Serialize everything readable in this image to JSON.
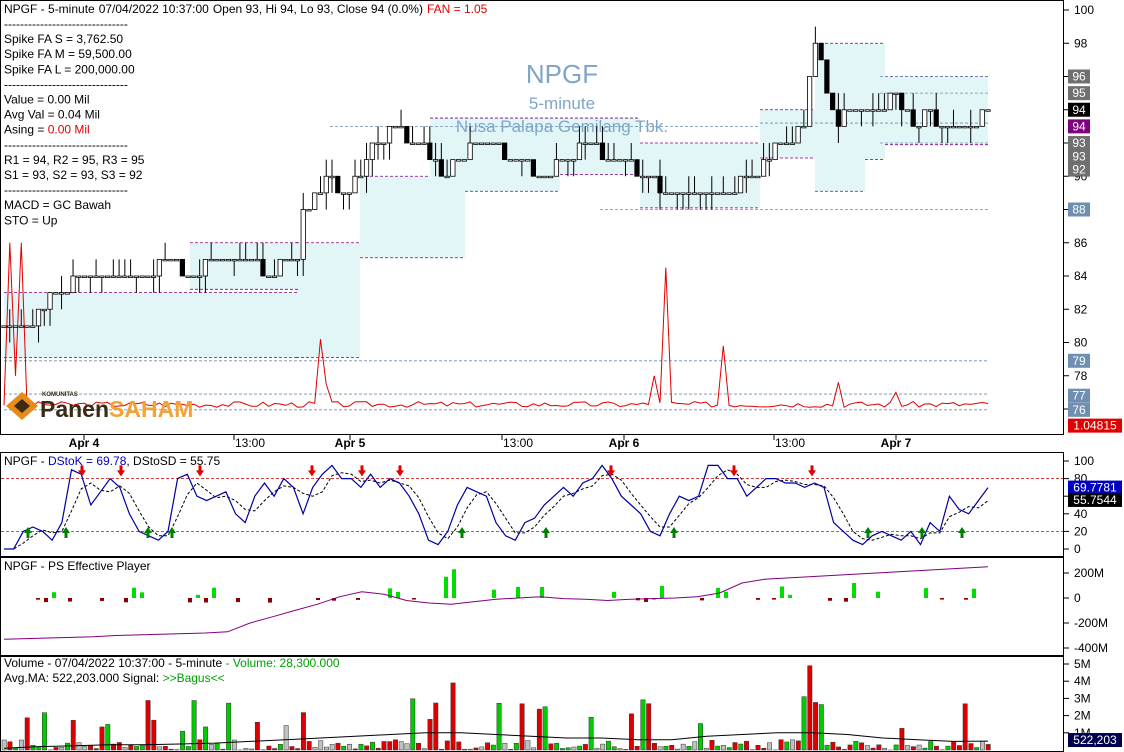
{
  "header": {
    "symbol": "NPGF",
    "sep1": " - ",
    "timeframe": "5-minute",
    "datetime": "07/04/2022 10:37:00",
    "ohlc": "Open 93, Hi 94, Lo 93, Close 94 (0.0%)",
    "fan_label": "FAN = 1.05"
  },
  "watermark": {
    "symbol": "NPGF",
    "timeframe": "5-minute",
    "company": "Nusa Palapa Gemilang Tbk."
  },
  "logo": {
    "small_text": "KOMUNITAS",
    "word1": "Panen",
    "word2": "SAHAM"
  },
  "info_lines": [
    {
      "text": "-------------------------------",
      "color": "#000000"
    },
    {
      "text": "Spike FA S  =  3,762.50",
      "color": "#000000"
    },
    {
      "text": "Spike FA M  =  59,500.00",
      "color": "#000000"
    },
    {
      "text": "Spike FA L  =  200,000.00",
      "color": "#000000"
    },
    {
      "text": "-------------------------------",
      "color": "#000000"
    },
    {
      "text": "Value = 0.00 Mil",
      "color": "#000000"
    },
    {
      "text": "Avg Val = 0.04 Mil",
      "color": "#000000"
    },
    {
      "text": "Asing = ",
      "color": "#000000",
      "suffix": "0.00 Mil",
      "suffix_color": "#e00000"
    },
    {
      "text": "-------------------------------",
      "color": "#000000"
    },
    {
      "text": "R1 = 94, R2 = 95, R3 = 95",
      "color": "#000000"
    },
    {
      "text": "S1 = 93, S2 = 93, S3 = 92",
      "color": "#000000"
    },
    {
      "text": "-------------------------------",
      "color": "#000000"
    },
    {
      "text": "MACD =  GC Bawah",
      "color": "#000000"
    },
    {
      "text": "STO  =  Up",
      "color": "#000000"
    }
  ],
  "price_axis": {
    "ticks": [
      "100",
      "98",
      "96",
      "94",
      "92",
      "90",
      "88",
      "86",
      "84",
      "82",
      "80",
      "78",
      "76"
    ],
    "tick_values": [
      100,
      98,
      96,
      94,
      92,
      90,
      88,
      86,
      84,
      82,
      80,
      78,
      76
    ],
    "range": [
      75.2,
      100.8
    ],
    "badges": [
      {
        "label": "96",
        "value": 96,
        "bg": "#707070",
        "fg": "#ffffff"
      },
      {
        "label": "95",
        "value": 95,
        "bg": "#707070",
        "fg": "#ffffff"
      },
      {
        "label": "94",
        "value": 94,
        "bg": "#000000",
        "fg": "#ffffff"
      },
      {
        "label": "94",
        "value": 93,
        "bg": "#800080",
        "fg": "#ffffff"
      },
      {
        "label": "93",
        "value": 92,
        "bg": "#707070",
        "fg": "#ffffff"
      },
      {
        "label": "93",
        "value": 91.2,
        "bg": "#707070",
        "fg": "#ffffff"
      },
      {
        "label": "92",
        "value": 90.4,
        "bg": "#707070",
        "fg": "#ffffff"
      },
      {
        "label": "88",
        "value": 88,
        "bg": "#6f8fb0",
        "fg": "#ffffff"
      },
      {
        "label": "79",
        "value": 78.9,
        "bg": "#6f8fb0",
        "fg": "#ffffff"
      },
      {
        "label": "77",
        "value": 76.8,
        "bg": "#6f8fb0",
        "fg": "#ffffff"
      },
      {
        "label": "76",
        "value": 75.95,
        "bg": "#6f8fb0",
        "fg": "#ffffff"
      },
      {
        "label": "1.04815",
        "value": 75.0,
        "bg": "#e00000",
        "fg": "#ffffff"
      }
    ]
  },
  "time_axis": [
    "Apr 4",
    "13:00",
    "Apr 5",
    "13:00",
    "Apr 6",
    "13:00",
    "Apr 7"
  ],
  "stoch": {
    "title": "NPGF - ",
    "k_label": "DStoK = 69.78",
    "d_label": ", DStoSD = 55.75",
    "ticks": [
      "100",
      "80",
      "60",
      "40",
      "20",
      "0"
    ],
    "tick_values": [
      100,
      80,
      60,
      40,
      20,
      0
    ],
    "badge_k": "69.7781",
    "badge_k_value": 69.78,
    "badge_d": "55.7544",
    "badge_d_value": 55.75,
    "upper": 80,
    "lower": 20
  },
  "ps": {
    "title": "NPGF - PS Effective Player",
    "ticks": [
      "200M",
      "0",
      "-200M",
      "-400M"
    ],
    "tick_values": [
      200,
      0,
      -200,
      -400
    ],
    "range": [
      -450,
      330
    ]
  },
  "volume": {
    "line1": "Volume - 07/04/2022 10:37:00 - 5-minute",
    "line1_green": " - Volume: 28,300.000",
    "line2": "Avg.MA: 522,203.000  Signal: ",
    "signal": ">>Bagus<<",
    "ticks": [
      "5M",
      "4M",
      "3M",
      "2M",
      "1M"
    ],
    "tick_values": [
      5,
      4,
      3,
      2,
      1
    ],
    "badge": "522,203",
    "badge_value": 0.522
  },
  "colors": {
    "up": "#ffffff",
    "down": "#000000",
    "band_fill": "#e2f6f8",
    "band_line": "#800080",
    "fan": "#e00000",
    "stoch_k": "#0000a0",
    "stoch_d": "#000000",
    "buy_arrow": "#008000",
    "sell_arrow": "#e00000",
    "ps_pos": "#00dd00",
    "ps_neg": "#8b0000",
    "ps_line": "#800080",
    "vol_up": "#00cc00",
    "vol_down": "#dd0000",
    "vol_neutral": "#c0c0c0",
    "vol_special": "#f0c000"
  },
  "chart_data": {
    "type": "candlestick",
    "interval": "5-minute",
    "ohlc_shown": {
      "open": 93,
      "high": 94,
      "low": 93,
      "close": 94,
      "change_pct": 0.0
    },
    "price_close_approx": [
      81,
      81,
      81,
      81,
      81,
      81,
      82,
      82,
      83,
      83,
      83,
      83,
      84,
      84,
      84,
      84,
      84,
      84,
      84,
      84,
      84,
      84,
      84,
      84,
      84,
      84,
      84,
      85,
      85,
      85,
      85,
      84,
      84,
      84,
      84,
      85,
      85,
      85,
      85,
      85,
      85,
      85,
      85,
      85,
      85,
      84,
      84,
      84,
      85,
      85,
      85,
      85,
      88,
      88,
      89,
      89,
      90,
      90,
      89,
      89,
      89,
      90,
      90,
      91,
      92,
      92,
      92,
      93,
      93,
      93,
      92,
      92,
      92,
      92,
      91,
      91,
      90,
      90,
      91,
      91,
      91,
      92,
      92,
      92,
      92,
      92,
      92,
      91,
      91,
      91,
      91,
      91,
      90,
      90,
      90,
      90,
      91,
      91,
      91,
      91,
      92,
      92,
      92,
      92,
      91,
      91,
      91,
      91,
      91,
      91,
      90,
      90,
      90,
      90,
      89,
      89,
      89,
      89,
      89,
      89,
      89,
      89,
      89,
      89,
      89,
      89,
      89,
      89,
      90,
      90,
      90,
      90,
      91,
      91,
      92,
      92,
      92,
      92,
      93,
      93,
      96,
      98,
      97,
      95,
      94,
      93,
      94,
      94,
      94,
      94,
      94,
      94,
      94,
      94,
      95,
      95,
      94,
      94,
      93,
      93,
      94,
      94,
      93,
      93,
      93,
      93,
      93,
      93,
      93,
      93,
      94,
      94
    ],
    "stoch_k": 69.78,
    "stoch_d": 55.75,
    "fan": 1.05,
    "support": [
      93,
      93,
      92
    ],
    "resistance": [
      94,
      95,
      95
    ],
    "volume_last": 28300,
    "volume_avg_ma": 522203
  }
}
